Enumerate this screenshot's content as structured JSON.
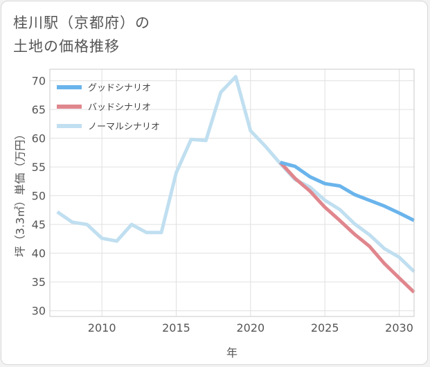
{
  "header": {
    "title_line1": "桂川駅（京都府）の",
    "title_line2": "土地の価格推移"
  },
  "chart_data": {
    "type": "line",
    "title": "桂川駅（京都府）の土地の価格推移",
    "xlabel": "年",
    "ylabel": "坪（3.3㎡）単価（万円）",
    "xlim": [
      2006.5,
      2031
    ],
    "ylim": [
      29,
      72
    ],
    "xticks": [
      2010,
      2015,
      2020,
      2025,
      2030
    ],
    "yticks": [
      30,
      35,
      40,
      45,
      50,
      55,
      60,
      65,
      70
    ],
    "grid": true,
    "legend_position": "top-left",
    "series": [
      {
        "name": "グッドシナリオ",
        "color": "#6ab4ec",
        "x": [
          2022,
          2023,
          2024,
          2025,
          2026,
          2027,
          2028,
          2029,
          2030,
          2031
        ],
        "y": [
          55.8,
          55.1,
          53.3,
          52.1,
          51.7,
          50.2,
          49.2,
          48.2,
          47.0,
          45.7
        ]
      },
      {
        "name": "バッドシナリオ",
        "color": "#e0868d",
        "x": [
          2022,
          2023,
          2024,
          2025,
          2026,
          2027,
          2028,
          2029,
          2030,
          2031
        ],
        "y": [
          55.8,
          53.0,
          50.8,
          48.0,
          45.7,
          43.3,
          41.2,
          38.2,
          35.7,
          33.2
        ]
      },
      {
        "name": "ノーマルシナリオ",
        "color": "#c0dff0",
        "x": [
          2007,
          2008,
          2009,
          2010,
          2011,
          2012,
          2013,
          2014,
          2015,
          2016,
          2017,
          2018,
          2019,
          2020,
          2021,
          2022,
          2023,
          2024,
          2025,
          2026,
          2027,
          2028,
          2029,
          2030,
          2031
        ],
        "y": [
          47.2,
          45.4,
          45.0,
          42.6,
          42.1,
          45.0,
          43.6,
          43.6,
          54.0,
          59.8,
          59.6,
          68.0,
          70.7,
          61.3,
          58.6,
          55.6,
          52.8,
          51.5,
          49.2,
          47.6,
          45.1,
          43.2,
          40.8,
          39.3,
          36.8
        ]
      }
    ]
  }
}
